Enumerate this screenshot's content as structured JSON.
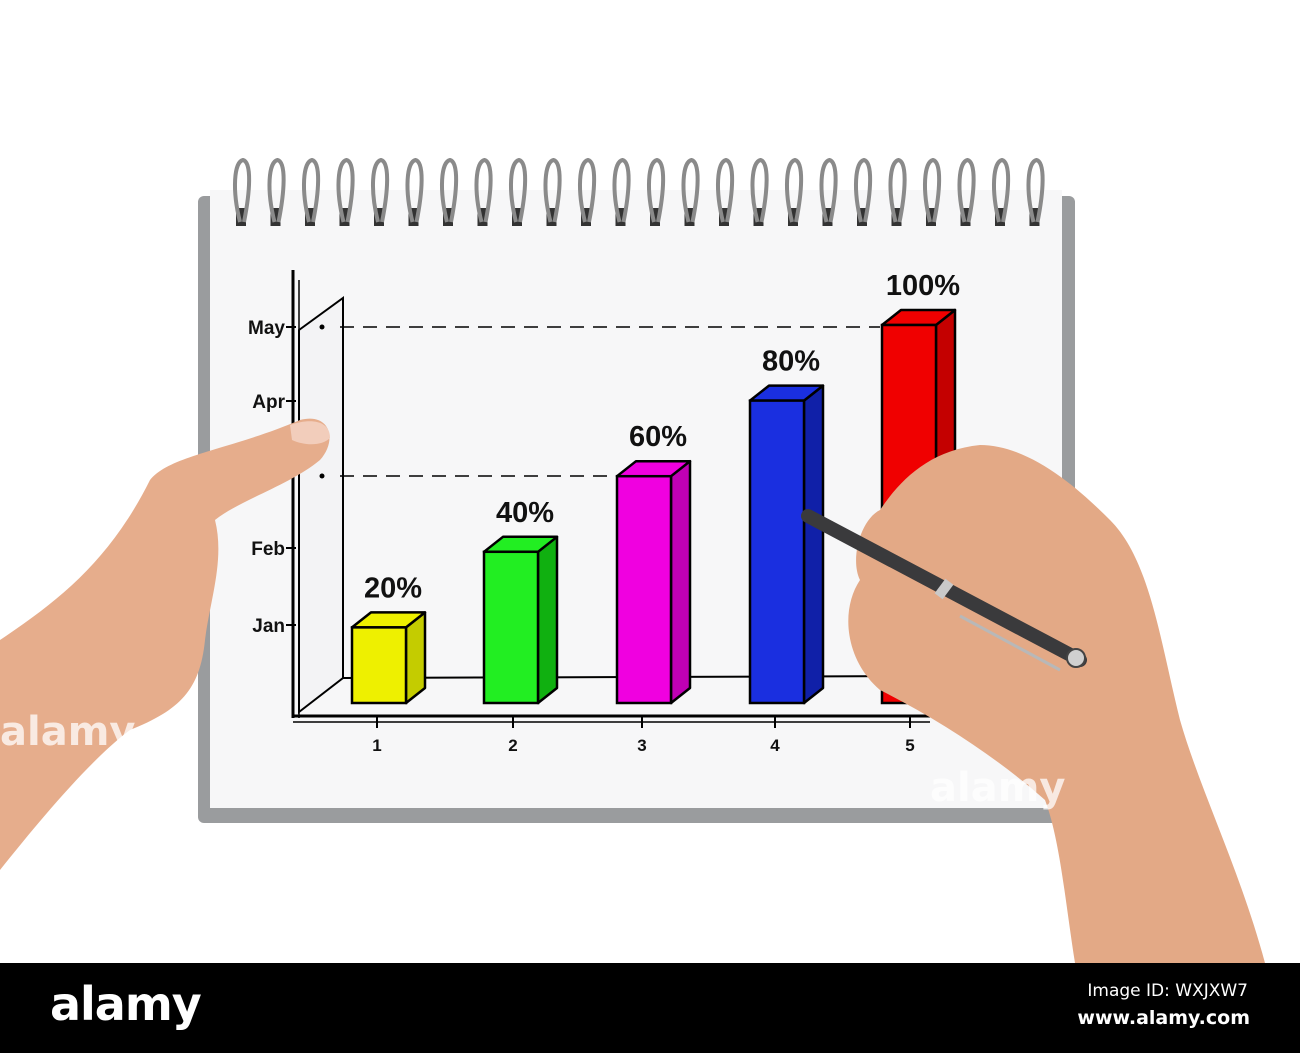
{
  "chart_data": {
    "type": "bar",
    "style": "hand-drawn 3d bars on spiral notepad",
    "categories": [
      "1",
      "2",
      "3",
      "4",
      "5"
    ],
    "values": [
      20,
      40,
      60,
      80,
      100
    ],
    "data_labels": [
      "20%",
      "40%",
      "60%",
      "80%",
      "100%"
    ],
    "y_tick_labels": [
      "Jan",
      "Feb",
      "Apr",
      "May"
    ],
    "ylim": [
      0,
      100
    ],
    "grid": false,
    "colors": [
      "#eef000",
      "#22ee22",
      "#f000e0",
      "#1a2fe0",
      "#f00000"
    ],
    "side_colors": [
      "#c4cc00",
      "#10b010",
      "#c000b4",
      "#1020a8",
      "#c40000"
    ]
  },
  "watermark": {
    "logo": "alamy",
    "image_id": "Image ID: WXJXW7",
    "site": "www.alamy.com"
  }
}
